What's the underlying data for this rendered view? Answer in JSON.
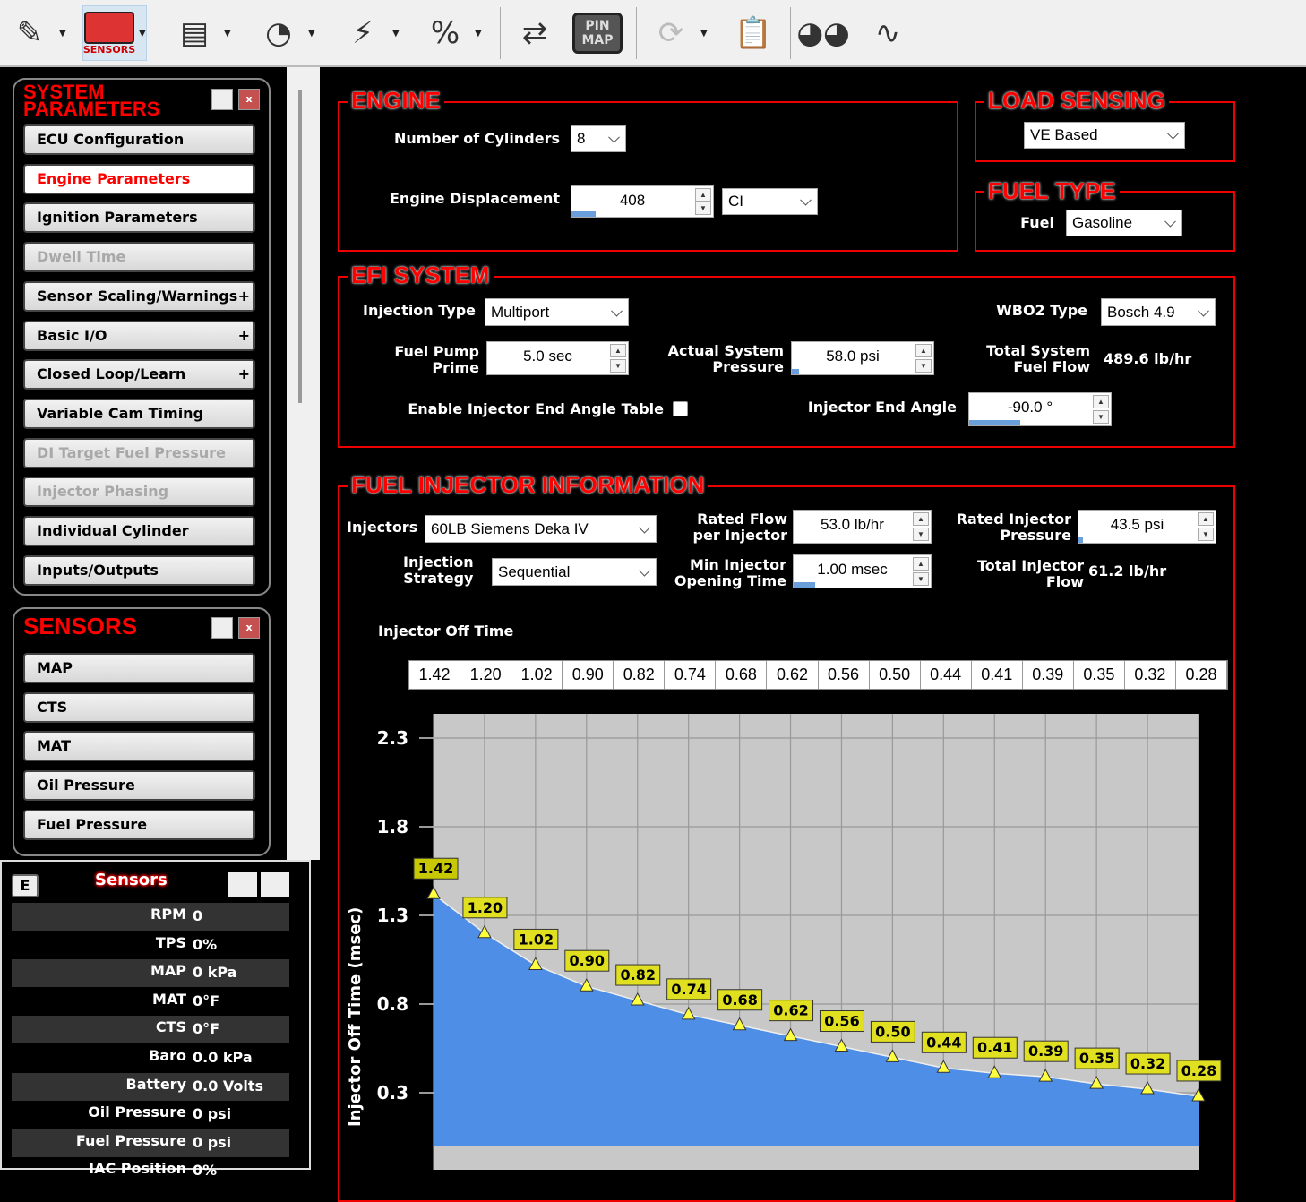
{
  "toolbar": {
    "items": [
      {
        "name": "injector-icon",
        "glyph": "✎",
        "dropdown": true
      },
      {
        "name": "sensors-icon",
        "label": "SENSORS",
        "dropdown": true,
        "selected": true
      },
      {
        "name": "efi-ecu-icon",
        "glyph": "▤",
        "dropdown": true
      },
      {
        "name": "gauge-icon",
        "glyph": "◔",
        "dropdown": true
      },
      {
        "name": "spark-plug-icon",
        "glyph": "⚡",
        "dropdown": true
      },
      {
        "name": "percent-icon",
        "glyph": "%",
        "dropdown": true
      },
      {
        "name": "transfer-icon",
        "glyph": "⇄",
        "dropdown": false
      },
      {
        "name": "pin-map-icon",
        "label": "PIN MAP",
        "dropdown": false
      },
      {
        "name": "refresh-icon",
        "glyph": "⟳",
        "dropdown": true,
        "disabled": true
      },
      {
        "name": "clipboard-icon",
        "glyph": "📋",
        "dropdown": false,
        "disabled": true
      },
      {
        "name": "dashboard-gauges-icon",
        "glyph": "◕◕",
        "dropdown": false
      },
      {
        "name": "pulse-icon",
        "glyph": "∿",
        "dropdown": false
      }
    ]
  },
  "system_panel": {
    "title": "SYSTEM PARAMETERS",
    "close": "x",
    "items": [
      {
        "label": "ECU Configuration",
        "state": "normal",
        "plus": ""
      },
      {
        "label": "Engine Parameters",
        "state": "active",
        "plus": ""
      },
      {
        "label": "Ignition Parameters",
        "state": "normal",
        "plus": ""
      },
      {
        "label": "Dwell Time",
        "state": "disabled",
        "plus": ""
      },
      {
        "label": "Sensor Scaling/Warnings",
        "state": "normal",
        "plus": "+"
      },
      {
        "label": "Basic I/O",
        "state": "normal",
        "plus": "+"
      },
      {
        "label": "Closed Loop/Learn",
        "state": "normal",
        "plus": "+"
      },
      {
        "label": "Variable Cam Timing",
        "state": "normal",
        "plus": ""
      },
      {
        "label": "DI Target Fuel Pressure",
        "state": "disabled",
        "plus": ""
      },
      {
        "label": "Injector Phasing",
        "state": "disabled",
        "plus": ""
      },
      {
        "label": "Individual Cylinder",
        "state": "normal",
        "plus": ""
      },
      {
        "label": "Inputs/Outputs",
        "state": "normal",
        "plus": ""
      }
    ]
  },
  "sensors_panel": {
    "title": "SENSORS",
    "close": "x",
    "items": [
      "MAP",
      "CTS",
      "MAT",
      "Oil Pressure",
      "Fuel Pressure"
    ]
  },
  "sensors_monitor": {
    "e_button": "E",
    "title": "Sensors",
    "rows": [
      {
        "label": "RPM",
        "value": "0"
      },
      {
        "label": "TPS",
        "value": "0%"
      },
      {
        "label": "MAP",
        "value": "0 kPa"
      },
      {
        "label": "MAT",
        "value": "0°F"
      },
      {
        "label": "CTS",
        "value": "0°F"
      },
      {
        "label": "Baro",
        "value": "0.0 kPa"
      },
      {
        "label": "Battery",
        "value": "0.0 Volts"
      },
      {
        "label": "Oil Pressure",
        "value": "0 psi"
      },
      {
        "label": "Fuel Pressure",
        "value": "0 psi"
      },
      {
        "label": "IAC Position",
        "value": "0%"
      }
    ]
  },
  "engine": {
    "title": "ENGINE",
    "cylinders_label": "Number of Cylinders",
    "cylinders": "8",
    "displacement_label": "Engine Displacement",
    "displacement": "408",
    "displacement_level": 0.17,
    "displacement_unit": "CI"
  },
  "load_sensing": {
    "title": "LOAD SENSING",
    "value": "VE Based"
  },
  "fuel_type": {
    "title": "FUEL TYPE",
    "label": "Fuel",
    "value": "Gasoline"
  },
  "efi": {
    "title": "EFI SYSTEM",
    "injection_type_label": "Injection Type",
    "injection_type": "Multiport",
    "wbo2_label": "WBO2 Type",
    "wbo2": "Bosch 4.9",
    "pump_prime_label": "Fuel Pump\nPrime",
    "pump_prime": "5.0 sec",
    "pump_prime_level": 0,
    "system_pressure_label": "Actual System\nPressure",
    "system_pressure": "58.0 psi",
    "system_pressure_level": 0.05,
    "total_flow_label": "Total System\nFuel Flow",
    "total_flow": "489.6 lb/hr",
    "end_angle_table_label": "Enable Injector End Angle Table",
    "end_angle_table_checked": false,
    "end_angle_label": "Injector End Angle",
    "end_angle": "-90.0 °",
    "end_angle_level": 0.36
  },
  "injector": {
    "title": "FUEL INJECTOR INFORMATION",
    "injectors_label": "Injectors",
    "injectors": "60LB Siemens Deka IV",
    "rated_flow_label": "Rated Flow\nper Injector",
    "rated_flow": "53.0 lb/hr",
    "rated_flow_level": 0,
    "rated_pressure_label": "Rated Injector\nPressure",
    "rated_pressure": "43.5 psi",
    "rated_pressure_level": 0.03,
    "strategy_label": "Injection\nStrategy",
    "strategy": "Sequential",
    "min_open_label": "Min Injector\nOpening Time",
    "min_open": "1.00 msec",
    "min_open_level": 0.16,
    "total_flow_label": "Total Injector\nFlow",
    "total_flow": "61.2 lb/hr",
    "off_time_label": "Injector Off Time",
    "off_time": [
      "1.42",
      "1.20",
      "1.02",
      "0.90",
      "0.82",
      "0.74",
      "0.68",
      "0.62",
      "0.56",
      "0.50",
      "0.44",
      "0.41",
      "0.39",
      "0.35",
      "0.32",
      "0.28"
    ]
  },
  "chart_data": {
    "type": "area",
    "ylabel": "Injector Off Time (msec)",
    "yticks": [
      "2.3",
      "1.8",
      "1.3",
      "0.8",
      "0.3"
    ],
    "ylim": [
      0,
      2.44
    ],
    "grid": true,
    "values": [
      1.42,
      1.2,
      1.02,
      0.9,
      0.82,
      0.74,
      0.68,
      0.62,
      0.56,
      0.5,
      0.44,
      0.41,
      0.39,
      0.35,
      0.32,
      0.28
    ],
    "colors": {
      "fill": "#4f8ee6",
      "plot_bg": "#c8c8c8",
      "label_bg": "#e0e020",
      "marker": "#ffff40"
    }
  }
}
